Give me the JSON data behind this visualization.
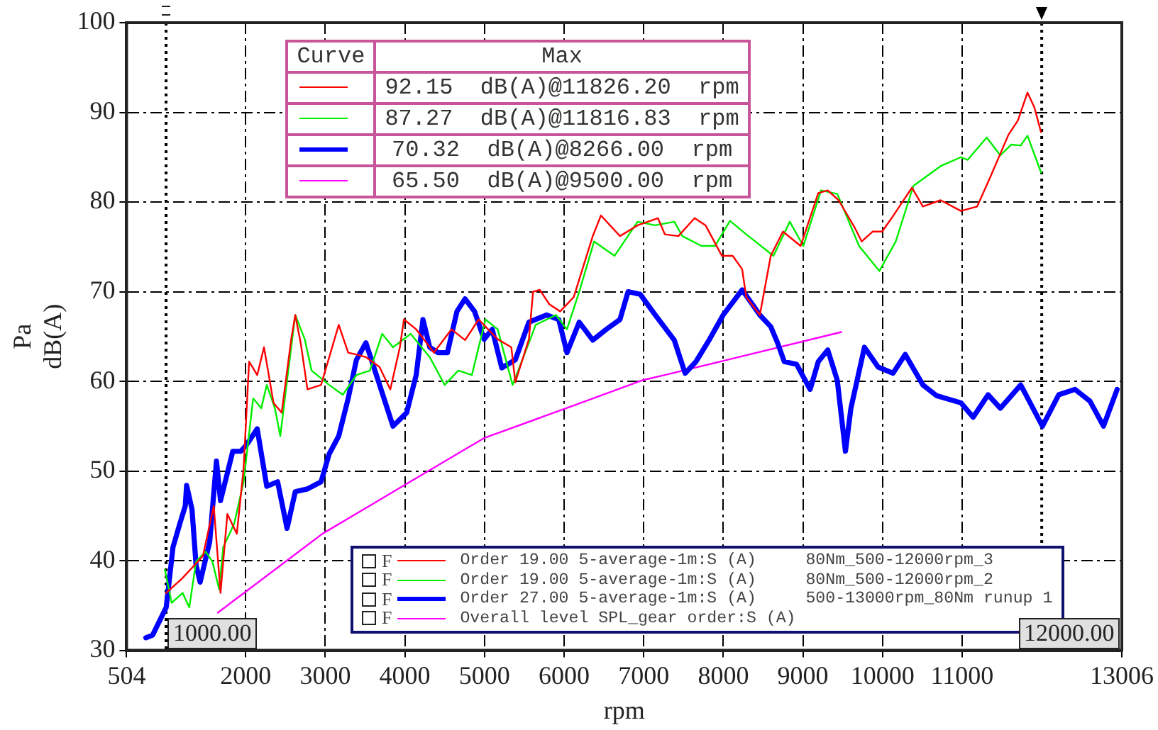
{
  "chart_data": {
    "type": "line",
    "xlabel": "rpm",
    "ylabel": "Pa\ndB(A)",
    "xlim": [
      504,
      13006
    ],
    "xticks": [
      504,
      2000,
      3000,
      4000,
      5000,
      6000,
      7000,
      8000,
      9000,
      10000,
      11000,
      13006
    ],
    "ylim": [
      30,
      100
    ],
    "yticks": [
      30,
      40,
      50,
      60,
      70,
      80,
      90,
      100
    ],
    "grid": true,
    "legend": "bottom",
    "ref_lines": [
      {
        "axis": "x",
        "value": 1000,
        "label": "1000.00",
        "color": "#000000",
        "line_style": "dotted"
      },
      {
        "axis": "x",
        "value": 12000,
        "label": "12000.00",
        "color": "#000000",
        "line_style": "dotted"
      }
    ],
    "annotations": [
      "Curve",
      "Max",
      "92.15  dB(A)@11826.20  rpm",
      "87.27  dB(A)@11816.83  rpm",
      "70.32  dB(A)@8266.00  rpm",
      "65.50  dB(A)@9500.00  rpm",
      "F",
      "F",
      "F",
      "F"
    ],
    "series": [
      {
        "name": "Order 19.00 5-average-1m:S (A)     80Nm_500-12000rpm_3",
        "color": "#ff0000",
        "x": [
          1000,
          1200,
          1462,
          1599,
          1684,
          1770,
          1889,
          1974,
          2043,
          2145,
          2230,
          2350,
          2452,
          2572,
          2623,
          2691,
          2776,
          2947,
          3169,
          3288,
          3391,
          3510,
          3681,
          3817,
          3937,
          3988,
          4142,
          4364,
          4585,
          4756,
          4927,
          5166,
          5337,
          5387,
          5558,
          5610,
          5695,
          5814,
          5951,
          6121,
          6360,
          6463,
          6702,
          6923,
          7179,
          7265,
          7435,
          7640,
          7777,
          7982,
          8118,
          8237,
          8288,
          8459,
          8596,
          8749,
          8971,
          9193,
          9312,
          9449,
          9653,
          9739,
          9875,
          9995,
          10114,
          10370,
          10507,
          10729,
          10985,
          11189,
          11360,
          11582,
          11701,
          11821,
          11906,
          11991
        ],
        "values": [
          36.4,
          38.0,
          40.5,
          46.1,
          36.4,
          45.2,
          43.0,
          50.3,
          62.2,
          60.7,
          63.8,
          57.6,
          56.5,
          64.7,
          67.4,
          64.3,
          59.1,
          59.6,
          66.3,
          63.2,
          63.0,
          62.7,
          61.6,
          59.1,
          63.8,
          66.9,
          65.8,
          63.2,
          65.8,
          64.6,
          66.9,
          64.7,
          63.8,
          59.9,
          64.7,
          70.0,
          70.2,
          68.6,
          67.8,
          69.4,
          76.2,
          78.5,
          76.2,
          77.4,
          78.2,
          76.4,
          76.2,
          78.2,
          77.4,
          74.0,
          74.0,
          72.5,
          69.4,
          67.4,
          74.0,
          76.7,
          75.1,
          81.0,
          81.3,
          80.2,
          77.1,
          75.6,
          76.7,
          76.7,
          78.2,
          81.6,
          79.5,
          80.2,
          79.0,
          79.5,
          82.9,
          87.5,
          89.1,
          92.2,
          90.6,
          87.8
        ]
      },
      {
        "name": "Order 19.00 5-average-1m:S (A)     80Nm_500-12000rpm_2",
        "color": "#00ee00",
        "x": [
          985,
          1070,
          1207,
          1292,
          1377,
          1497,
          1582,
          1667,
          1718,
          1855,
          1974,
          2094,
          2196,
          2265,
          2367,
          2435,
          2520,
          2623,
          2742,
          2828,
          3049,
          3220,
          3391,
          3561,
          3715,
          3851,
          4073,
          4312,
          4500,
          4671,
          4841,
          5012,
          5166,
          5353,
          5558,
          5643,
          5899,
          6036,
          6190,
          6377,
          6634,
          6923,
          7145,
          7384,
          7486,
          7725,
          7896,
          8084,
          8288,
          8630,
          8835,
          9005,
          9227,
          9432,
          9705,
          9961,
          10166,
          10388,
          10729,
          10985,
          11070,
          11309,
          11480,
          11616,
          11736,
          11821,
          11991
        ],
        "values": [
          39.0,
          35.3,
          36.4,
          34.8,
          39.9,
          41.0,
          39.9,
          36.8,
          41.5,
          44.1,
          48.8,
          58.1,
          57.0,
          59.6,
          57.0,
          53.9,
          60.1,
          67.4,
          64.7,
          61.2,
          59.6,
          58.5,
          60.7,
          61.2,
          65.3,
          63.8,
          65.3,
          62.7,
          59.6,
          61.2,
          60.7,
          66.9,
          65.8,
          59.6,
          64.3,
          66.3,
          67.4,
          65.8,
          70.0,
          75.6,
          74.0,
          77.8,
          77.4,
          77.8,
          76.2,
          75.1,
          75.1,
          77.9,
          76.4,
          74.0,
          77.8,
          75.1,
          81.3,
          80.9,
          75.1,
          72.3,
          75.6,
          81.8,
          84.0,
          85.0,
          84.7,
          87.2,
          85.2,
          86.4,
          86.3,
          87.4,
          83.3
        ]
      },
      {
        "name": "Order 27.00 5-average-1m:S (A)     500-13000rpm_80Nm runup 1",
        "color": "#0000ff",
        "x": [
          746,
          831,
          1002,
          1087,
          1172,
          1241,
          1258,
          1326,
          1377,
          1428,
          1548,
          1633,
          1684,
          1838,
          1940,
          2009,
          2145,
          2265,
          2401,
          2520,
          2623,
          2776,
          2947,
          3049,
          3169,
          3288,
          3391,
          3510,
          3851,
          4022,
          4142,
          4227,
          4312,
          4415,
          4534,
          4654,
          4756,
          4875,
          4995,
          5097,
          5217,
          5387,
          5558,
          5780,
          5933,
          6036,
          6190,
          6360,
          6531,
          6702,
          6804,
          6957,
          7145,
          7384,
          7520,
          7657,
          7828,
          7998,
          8237,
          8459,
          8596,
          8681,
          8766,
          8920,
          9091,
          9193,
          9312,
          9432,
          9534,
          9603,
          9773,
          9944,
          10132,
          10285,
          10507,
          10678,
          10985,
          11138,
          11326,
          11480,
          11736,
          12009,
          12213,
          12418,
          12605,
          12776,
          12947
        ],
        "values": [
          31.4,
          31.7,
          34.8,
          41.5,
          44.1,
          46.1,
          48.4,
          45.7,
          39.5,
          37.6,
          42.1,
          51.1,
          46.7,
          52.2,
          52.2,
          52.9,
          54.7,
          48.3,
          48.8,
          43.6,
          47.7,
          48.0,
          48.8,
          51.9,
          53.9,
          58.1,
          62.4,
          64.3,
          55.0,
          56.5,
          60.7,
          66.9,
          63.8,
          63.2,
          63.2,
          67.8,
          69.2,
          67.8,
          64.7,
          65.8,
          61.5,
          62.4,
          66.6,
          67.4,
          66.9,
          63.2,
          66.6,
          64.6,
          65.8,
          66.9,
          70.0,
          69.7,
          67.4,
          64.6,
          60.9,
          62.2,
          64.7,
          67.4,
          70.2,
          67.4,
          66.1,
          64.3,
          62.2,
          61.9,
          59.1,
          62.2,
          63.5,
          60.1,
          52.2,
          57.0,
          63.8,
          61.6,
          60.9,
          63.0,
          59.6,
          58.4,
          57.6,
          56.0,
          58.5,
          57.0,
          59.6,
          55.0,
          58.5,
          59.1,
          57.8,
          55.0,
          59.1
        ]
      },
      {
        "name": "Overall level SPL_gear order:S (A)",
        "color": "#ff00ff",
        "x": [
          1650,
          2964,
          3971,
          5000,
          6121,
          6975,
          7264,
          9483
        ],
        "values": [
          34.2,
          43.0,
          48.3,
          53.7,
          57.3,
          60.1,
          60.7,
          65.5
        ]
      }
    ]
  }
}
